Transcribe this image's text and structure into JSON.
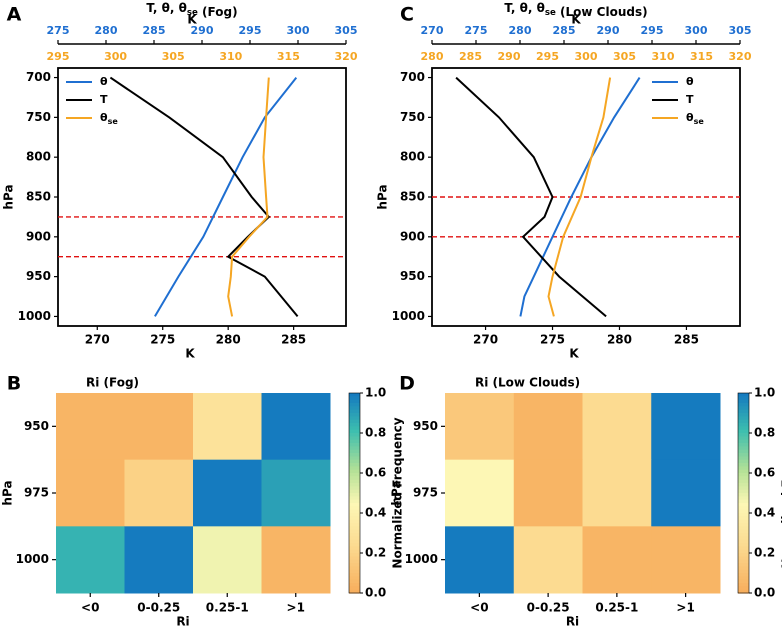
{
  "figure": {
    "panel_letters": [
      "A",
      "C",
      "B",
      "D"
    ]
  },
  "chart_data": [
    {
      "id": "A",
      "type": "line",
      "title": "T, θ, θse (Fog)",
      "xlabel": "K",
      "ylabel": "hPa",
      "xlim": [
        267,
        289
      ],
      "xticks": [
        270,
        275,
        280,
        285
      ],
      "ylim": [
        1012,
        688
      ],
      "yticks": [
        700,
        750,
        800,
        850,
        900,
        950,
        1000
      ],
      "top_axis_theta": {
        "label": "K",
        "range": [
          275,
          305
        ],
        "ticks": [
          275,
          280,
          285,
          290,
          295,
          300,
          305
        ],
        "color": "#1f6fd1"
      },
      "top_axis_theta_se": {
        "range": [
          295,
          320
        ],
        "ticks": [
          295,
          300,
          305,
          310,
          315,
          320
        ],
        "color": "#f5a623"
      },
      "hlines": [
        875,
        925
      ],
      "legend": [
        "θ",
        "T",
        "θse"
      ],
      "series": [
        {
          "name": "θ",
          "color": "#1f6fd1",
          "points": [
            [
              285.2,
              700
            ],
            [
              282.8,
              750
            ],
            [
              281.1,
              800
            ],
            [
              279.6,
              850
            ],
            [
              278.1,
              900
            ],
            [
              276.2,
              950
            ],
            [
              274.4,
              1000
            ]
          ]
        },
        {
          "name": "T",
          "color": "#000000",
          "points": [
            [
              271.0,
              700
            ],
            [
              275.5,
              750
            ],
            [
              279.6,
              800
            ],
            [
              281.8,
              850
            ],
            [
              283.1,
              875
            ],
            [
              281.5,
              900
            ],
            [
              280.0,
              925
            ],
            [
              282.8,
              950
            ],
            [
              285.3,
              1000
            ]
          ]
        },
        {
          "name": "θse",
          "color": "#f5a623",
          "points": [
            [
              283.1,
              700
            ],
            [
              282.9,
              750
            ],
            [
              282.7,
              800
            ],
            [
              282.9,
              850
            ],
            [
              283.0,
              875
            ],
            [
              281.6,
              900
            ],
            [
              280.3,
              925
            ],
            [
              280.2,
              950
            ],
            [
              280.0,
              975
            ],
            [
              280.3,
              1000
            ]
          ]
        }
      ]
    },
    {
      "id": "C",
      "type": "line",
      "title": "T, θ, θse (Low Clouds)",
      "xlabel": "K",
      "ylabel": "hPa",
      "xlim": [
        266,
        289
      ],
      "xticks": [
        270,
        275,
        280,
        285
      ],
      "ylim": [
        1012,
        688
      ],
      "yticks": [
        700,
        750,
        800,
        850,
        900,
        950,
        1000
      ],
      "top_axis_theta": {
        "label": "K",
        "range": [
          270,
          305
        ],
        "ticks": [
          270,
          275,
          280,
          285,
          290,
          295,
          300,
          305
        ],
        "color": "#1f6fd1"
      },
      "top_axis_theta_se": {
        "range": [
          280,
          320
        ],
        "ticks": [
          280,
          285,
          290,
          295,
          300,
          305,
          310,
          315,
          320
        ],
        "color": "#f5a623"
      },
      "hlines": [
        850,
        900
      ],
      "legend": [
        "θ",
        "T",
        "θse"
      ],
      "series": [
        {
          "name": "θ",
          "color": "#1f6fd1",
          "points": [
            [
              281.5,
              700
            ],
            [
              279.6,
              750
            ],
            [
              277.9,
              800
            ],
            [
              276.4,
              850
            ],
            [
              275.0,
              900
            ],
            [
              273.6,
              950
            ],
            [
              272.9,
              975
            ],
            [
              272.6,
              1000
            ]
          ]
        },
        {
          "name": "T",
          "color": "#000000",
          "points": [
            [
              267.8,
              700
            ],
            [
              271.0,
              750
            ],
            [
              273.6,
              800
            ],
            [
              275.0,
              850
            ],
            [
              274.4,
              875
            ],
            [
              272.8,
              900
            ],
            [
              275.5,
              950
            ],
            [
              279.0,
              1000
            ]
          ]
        },
        {
          "name": "θse",
          "color": "#f5a623",
          "points": [
            [
              279.3,
              700
            ],
            [
              278.8,
              750
            ],
            [
              277.9,
              800
            ],
            [
              277.1,
              850
            ],
            [
              275.8,
              900
            ],
            [
              275.0,
              950
            ],
            [
              274.7,
              975
            ],
            [
              275.1,
              1000
            ]
          ]
        }
      ]
    },
    {
      "id": "B",
      "type": "heatmap",
      "title": "Ri (Fog)",
      "xlabel": "Ri",
      "ylabel": "hPa",
      "categories": [
        "<0",
        "0-0.25",
        "0.25-1",
        ">1"
      ],
      "rows": [
        "950",
        "975",
        "1000"
      ],
      "values": [
        [
          0.05,
          0.05,
          0.3,
          1.0
        ],
        [
          0.05,
          0.2,
          1.0,
          0.9
        ],
        [
          0.85,
          1.0,
          0.48,
          0.05
        ]
      ],
      "colorbar": {
        "label": "Normalized Frequency",
        "range": [
          0,
          1
        ],
        "ticks": [
          "0.0",
          "0.2",
          "0.4",
          "0.6",
          "0.8",
          "1.0"
        ]
      }
    },
    {
      "id": "D",
      "type": "heatmap",
      "title": "Ri (Low Clouds)",
      "xlabel": "Ri",
      "ylabel": "hPa",
      "categories": [
        "<0",
        "0-0.25",
        "0.25-1",
        ">1"
      ],
      "rows": [
        "950",
        "975",
        "1000"
      ],
      "values": [
        [
          0.15,
          0.05,
          0.25,
          1.0
        ],
        [
          0.45,
          0.05,
          0.25,
          1.0
        ],
        [
          1.0,
          0.25,
          0.05,
          0.05
        ]
      ],
      "colorbar": {
        "label": "Normalized Frequency",
        "range": [
          0,
          1
        ],
        "ticks": [
          "0.0",
          "0.2",
          "0.4",
          "0.6",
          "0.8",
          "1.0"
        ]
      }
    }
  ]
}
